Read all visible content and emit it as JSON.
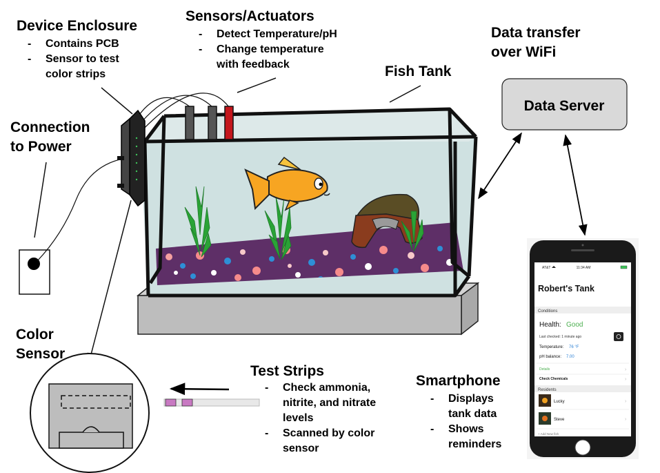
{
  "labels": {
    "enclosure_title": "Device Enclosure",
    "enclosure_b1": "Contains PCB",
    "enclosure_b2_l1": "Sensor to test",
    "enclosure_b2_l2": "color strips",
    "sensors_title": "Sensors/Actuators",
    "sensors_b1": "Detect Temperature/pH",
    "sensors_b2_l1": "Change temperature",
    "sensors_b2_l2": "with feedback",
    "transfer_l1": "Data transfer",
    "transfer_l2": "over WiFi",
    "fish_tank": "Fish Tank",
    "power_l1": "Connection",
    "power_l2": "to Power",
    "server": "Data Server",
    "color_l1": "Color",
    "color_l2": "Sensor",
    "strips_title": "Test Strips",
    "strips_b1_l1": "Check ammonia,",
    "strips_b1_l2": "nitrite, and nitrate",
    "strips_b1_l3": "levels",
    "strips_b2_l1": "Scanned by color",
    "strips_b2_l2": "sensor",
    "phone_title": "Smartphone",
    "phone_b1_l1": "Displays",
    "phone_b1_l2": "tank data",
    "phone_b2_l1": "Shows",
    "phone_b2_l2": "reminders",
    "dash": "-"
  },
  "app": {
    "carrier": "AT&T",
    "time": "11:34 AM",
    "tank_name": "Robert's Tank",
    "section_conditions": "Conditions",
    "health_label": "Health:",
    "health_value": "Good",
    "last_checked": "Last checked: 1 minute ago",
    "temperature_label": "Temperature:",
    "temperature_value": "76 °F",
    "ph_label": "pH balance:",
    "ph_value": "7.00",
    "details": "Details",
    "check_chemicals": "Check Chemicals",
    "section_residents": "Residents",
    "resident_1": "Lucky",
    "resident_2": "Steve",
    "add_new": "+ Add New fish"
  },
  "colors": {
    "water": "#cfe1e1",
    "gravel": "#5e2f67",
    "stand": "#bdbdbd",
    "fish": "#f7a522",
    "plant": "#2aa336",
    "server_box": "#d9d9d9",
    "health_green": "#4caf50",
    "value_blue": "#2a7fd4",
    "sensor_red": "#c4161c",
    "sensor_gray": "#555555",
    "strip_pad": "#c879c2"
  },
  "icons": [
    "refresh-icon",
    "wifi-icon",
    "battery-icon",
    "chevron-right-icon"
  ]
}
